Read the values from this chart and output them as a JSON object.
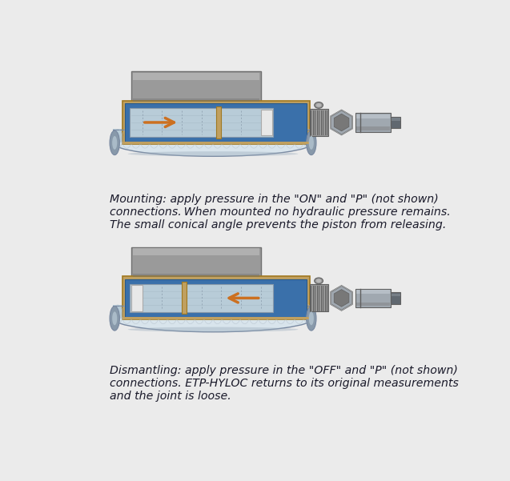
{
  "bg_color": "#ebebeb",
  "text1_lines": [
    "Mounting: apply pressure in the \"ON\" and \"P\" (not shown)",
    "connections. When mounted no hydraulic pressure remains.",
    "The small conical angle prevents the piston from releasing."
  ],
  "text2_lines": [
    "Dismantling: apply pressure in the \"OFF\" and \"P\" (not shown)",
    "connections. ETP-HYLOC returns to its original measurements",
    "and the joint is loose."
  ],
  "blue_body": "#3a70aa",
  "blue_dark": "#2a5a8a",
  "blue_inner": "#7aaaca",
  "blue_light": "#a8c8e0",
  "gray_cap": "#9a9a9a",
  "gray_cap_light": "#c0c0c0",
  "gray_cap_dark": "#707070",
  "gold_border": "#c8a040",
  "gold_dark": "#a07820",
  "orange_arrow": "#cc7020",
  "shaft_fill": "#b8ccd8",
  "shaft_light": "#d8e4ec",
  "shaft_dark": "#8899aa",
  "shaft_edge": "#7888a0",
  "white_block": "#e8e8e8",
  "steel_light": "#b8b8b8",
  "steel_mid": "#989898",
  "steel_dark": "#787878",
  "thread_dark": "#606060",
  "hex_fill": "#a0a8b0",
  "hex_light": "#c8ccd0",
  "port_fill": "#a0a8b0",
  "port_light": "#c0c8d0",
  "dark_end": "#606870",
  "tan_border": "#c0a060"
}
